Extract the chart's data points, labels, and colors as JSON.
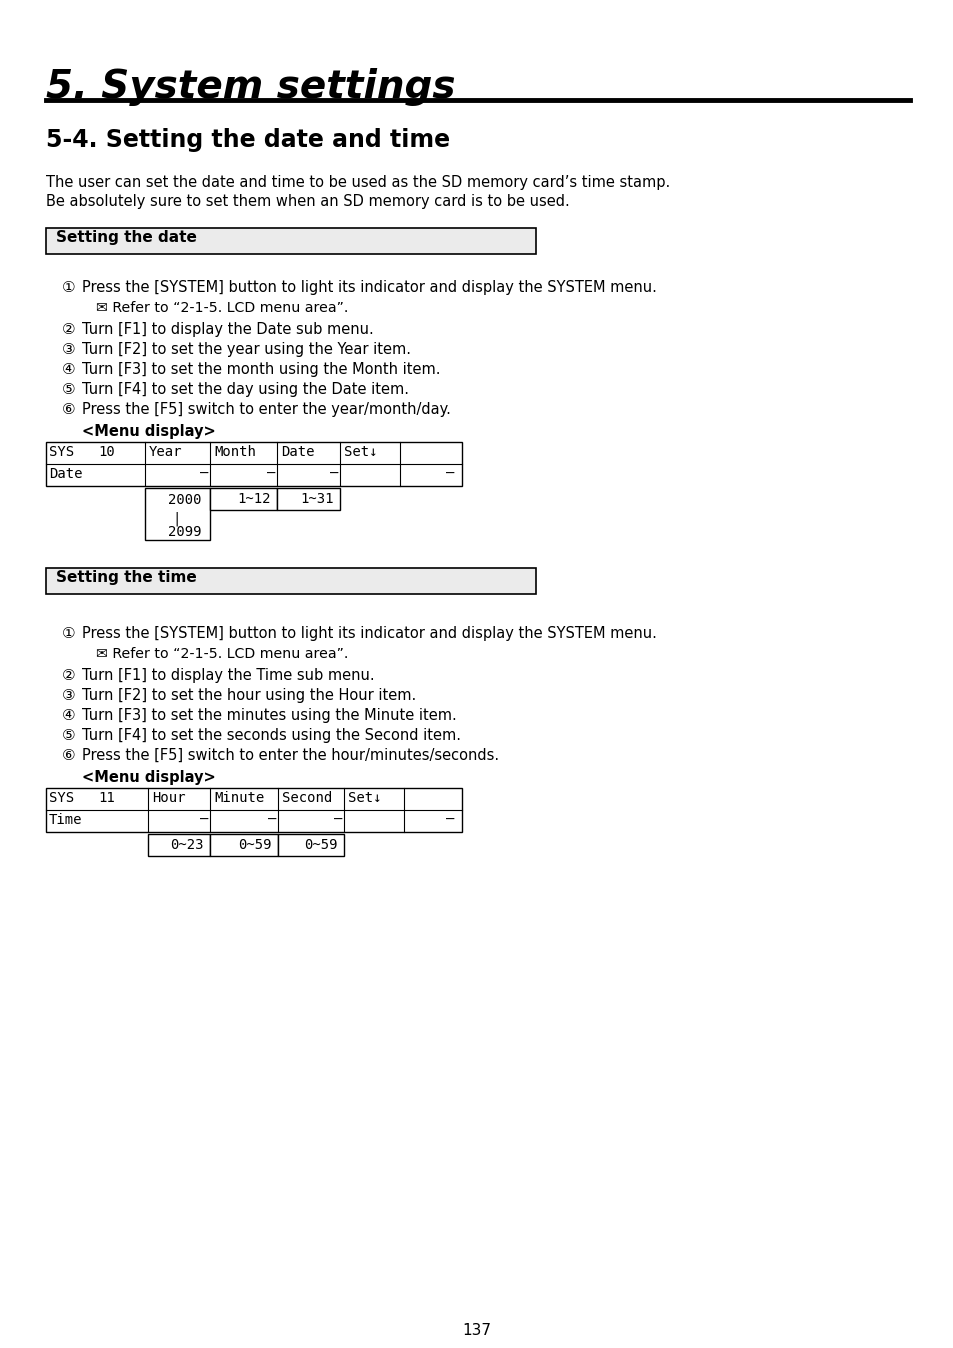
{
  "title": "5. System settings",
  "subtitle": "5-4. Setting the date and time",
  "intro_text_1": "The user can set the date and time to be used as the SD memory card’s time stamp.",
  "intro_text_2": "Be absolutely sure to set them when an SD memory card is to be used.",
  "section1_header": "Setting the date",
  "section1_steps": [
    "Press the [SYSTEM] button to light its indicator and display the SYSTEM menu.",
    "✉ Refer to “2-1-5. LCD menu area”.",
    "Turn [F1] to display the Date sub menu.",
    "Turn [F2] to set the year using the Year item.",
    "Turn [F3] to set the month using the Month item.",
    "Turn [F4] to set the day using the Date item.",
    "Press the [F5] switch to enter the year/month/day."
  ],
  "menu_display_label": "<Menu display>",
  "section2_header": "Setting the time",
  "section2_steps": [
    "Press the [SYSTEM] button to light its indicator and display the SYSTEM menu.",
    "✉ Refer to “2-1-5. LCD menu area”.",
    "Turn [F1] to display the Time sub menu.",
    "Turn [F2] to set the hour using the Hour item.",
    "Turn [F3] to set the minutes using the Minute item.",
    "Turn [F4] to set the seconds using the Second item.",
    "Press the [F5] switch to enter the hour/minutes/seconds."
  ],
  "page_number": "137",
  "bg_color": "#ffffff",
  "text_color": "#000000"
}
